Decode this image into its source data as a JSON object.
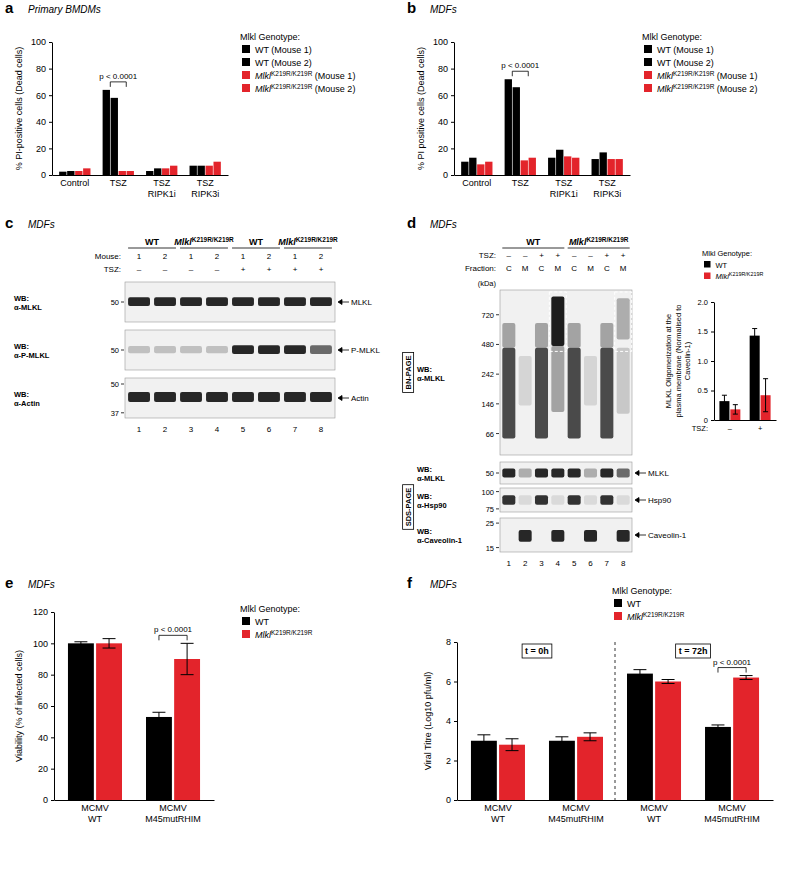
{
  "chart_data": [
    {
      "type": "bar",
      "panel_label": "a",
      "title": "Primary BMDMs",
      "ylabel": "% PI-positive cells (Dead cells)",
      "categories": [
        "Control",
        "TSZ",
        "TSZ RIPK1i",
        "TSZ RIPK3i"
      ],
      "series": [
        {
          "name": "WT (Mouse 1)",
          "color": "#000000",
          "values": [
            2.5,
            64,
            3,
            7
          ]
        },
        {
          "name": "WT (Mouse 2)",
          "color": "#000000",
          "values": [
            3,
            58,
            5,
            7
          ]
        },
        {
          "name": "MlklK219R/K219R (Mouse 1)",
          "color": "#e3242b",
          "values": [
            3,
            3,
            5,
            7
          ]
        },
        {
          "name": "MlklK219R/K219R (Mouse 2)",
          "color": "#e3242b",
          "values": [
            5,
            3,
            7,
            10
          ]
        }
      ],
      "ylim": [
        0,
        100
      ],
      "yticks": [
        0,
        20,
        40,
        60,
        80,
        100
      ],
      "legend": "right",
      "legend_title": "Mlkl Genotype:",
      "annotations": [
        {
          "text": "p < 0.0001",
          "category": 1
        }
      ]
    },
    {
      "type": "bar",
      "panel_label": "b",
      "title": "MDFs",
      "ylabel": "% PI positive cells (Dead cells)",
      "categories": [
        "Control",
        "TSZ",
        "TSZ RIPK1i",
        "TSZ RIPK3i"
      ],
      "series": [
        {
          "name": "WT (Mouse 1)",
          "color": "#000000",
          "values": [
            10,
            72,
            13,
            12
          ]
        },
        {
          "name": "WT (Mouse 2)",
          "color": "#000000",
          "values": [
            13,
            66,
            19,
            17
          ]
        },
        {
          "name": "MlklK219R/K219R (Mouse 1)",
          "color": "#e3242b",
          "values": [
            8,
            11,
            14,
            12
          ]
        },
        {
          "name": "MlklK219R/K219R (Mouse 2)",
          "color": "#e3242b",
          "values": [
            10,
            13,
            13,
            12
          ]
        }
      ],
      "ylim": [
        0,
        100
      ],
      "yticks": [
        0,
        20,
        40,
        60,
        80,
        100
      ],
      "legend": "right",
      "legend_title": "Mlkl Genotype:",
      "annotations": [
        {
          "text": "p < 0.0001",
          "category": 1
        }
      ]
    },
    {
      "type": "bar",
      "ylabel": "MLKL Oligomerization at the plasma membrane (Normalised to Caveolin-1)",
      "xlabel": "TSZ:",
      "categories": [
        "–",
        "+"
      ],
      "series": [
        {
          "name": "WT",
          "color": "#000000",
          "values": [
            0.32,
            1.43
          ],
          "errors": [
            0.1,
            0.12
          ]
        },
        {
          "name": "MlklK219R/K219R",
          "color": "#e3242b",
          "values": [
            0.18,
            0.42
          ],
          "errors": [
            0.08,
            0.28
          ]
        }
      ],
      "ylim": [
        0,
        2
      ],
      "yticks": [
        0,
        0.5,
        {
          "value": 1,
          "label": "1.0"
        },
        1.5,
        {
          "value": 2,
          "label": "2.0"
        }
      ],
      "legend": "top",
      "legend_title": "Mlkl Genotype:"
    },
    {
      "type": "bar",
      "panel_label": "e",
      "title": "MDFs",
      "ylabel": "Viability (% of infected cells)",
      "categories": [
        "MCMV WT",
        "MCMV M45mutRHIM"
      ],
      "series": [
        {
          "name": "WT",
          "color": "#000000",
          "values": [
            100,
            53
          ],
          "errors": [
            1,
            3
          ]
        },
        {
          "name": "MlklK219R/K219R",
          "color": "#e3242b",
          "values": [
            100,
            90
          ],
          "errors": [
            3,
            10
          ]
        }
      ],
      "ylim": [
        0,
        120
      ],
      "yticks": [
        0,
        20,
        40,
        60,
        80,
        100,
        120
      ],
      "legend": "right",
      "legend_title": "Mlkl Genotype:",
      "annotations": [
        {
          "text": "p < 0.0001",
          "category": 1
        }
      ]
    },
    {
      "type": "bar",
      "panel_label": "f",
      "title": "MDFs",
      "ylabel": "Viral Titre (Log10 pfu/ml)",
      "categories": [
        "MCMV WT",
        "MCMV M45mutRHIM",
        "MCMV WT",
        "MCMV M45mutRHIM"
      ],
      "series": [
        {
          "name": "WT",
          "color": "#000000",
          "values": [
            3.0,
            3.0,
            6.4,
            3.7
          ],
          "errors": [
            0.3,
            0.2,
            0.2,
            0.1
          ]
        },
        {
          "name": "MlklK219R/K219R",
          "color": "#e3242b",
          "values": [
            2.8,
            3.2,
            6.0,
            6.2
          ],
          "errors": [
            0.3,
            0.2,
            0.1,
            0.1
          ]
        }
      ],
      "ylim": [
        0,
        8
      ],
      "yticks": [
        0,
        2,
        4,
        6,
        8
      ],
      "legend": "top",
      "legend_title": "Mlkl Genotype:",
      "group_labels": [
        {
          "text": "t = 0h",
          "categories": [
            0,
            1
          ]
        },
        {
          "text": "t = 72h",
          "categories": [
            2,
            3
          ]
        }
      ],
      "annotations": [
        {
          "text": "p < 0.0001",
          "category": 3
        }
      ]
    }
  ],
  "blots": [
    {
      "panel_label": "c",
      "title": "MDFs",
      "groups": [
        {
          "text": "WT",
          "lanes": [
            1,
            2
          ]
        },
        {
          "text": "MlklK219R/K219R",
          "lanes": [
            3,
            4
          ]
        },
        {
          "text": "WT",
          "lanes": [
            5,
            6
          ]
        },
        {
          "text": "MlklK219R/K219R",
          "lanes": [
            7,
            8
          ]
        }
      ],
      "rows": [
        {
          "label": "Mouse:",
          "values": [
            1,
            2,
            1,
            2,
            1,
            2,
            1,
            2
          ]
        },
        {
          "label": "TSZ:",
          "values": [
            "–",
            "–",
            "–",
            "–",
            "+",
            "+",
            "+",
            "+"
          ]
        }
      ],
      "blots": [
        {
          "probe": "WB: α-MLKL",
          "markers": [
            50
          ],
          "band": "MLKL"
        },
        {
          "probe": "WB: α-P-MLKL",
          "markers": [
            50
          ],
          "band": "P-MLKL"
        },
        {
          "probe": "WB: α-Actin",
          "markers": [
            50,
            37
          ],
          "band": "Actin"
        }
      ],
      "lanes": [
        1,
        2,
        3,
        4,
        5,
        6,
        7,
        8
      ]
    },
    {
      "panel_label": "d",
      "title": "MDFs",
      "groups": [
        {
          "text": "WT",
          "lanes": [
            1,
            2,
            3,
            4
          ]
        },
        {
          "text": "MlklK219R/K219R",
          "lanes": [
            5,
            6,
            7,
            8
          ]
        }
      ],
      "rows": [
        {
          "label": "TSZ:",
          "values": [
            "–",
            "–",
            "+",
            "+",
            "–",
            "–",
            "+",
            "+"
          ]
        },
        {
          "label": "Fraction:",
          "values": [
            "C",
            "M",
            "C",
            "M",
            "C",
            "M",
            "C",
            "M"
          ]
        }
      ],
      "sections": [
        {
          "name": "BN-PAGE",
          "blots": [
            {
              "probe": "WB: α-MLKL",
              "marker_title": "(kDa)",
              "markers": [
                720,
                480,
                242,
                146,
                66
              ]
            }
          ]
        },
        {
          "name": "SDS-PAGE",
          "blots": [
            {
              "probe": "WB: α-MLKL",
              "markers": [
                50
              ],
              "band": "MLKL"
            },
            {
              "probe": "WB: α-Hsp90",
              "markers": [
                100,
                75
              ],
              "band": "Hsp90"
            },
            {
              "probe": "WB: α-Caveolin-1",
              "markers": [
                25,
                15
              ],
              "band": "Caveolin-1"
            }
          ]
        }
      ],
      "lanes": [
        1,
        2,
        3,
        4,
        5,
        6,
        7,
        8
      ]
    }
  ]
}
